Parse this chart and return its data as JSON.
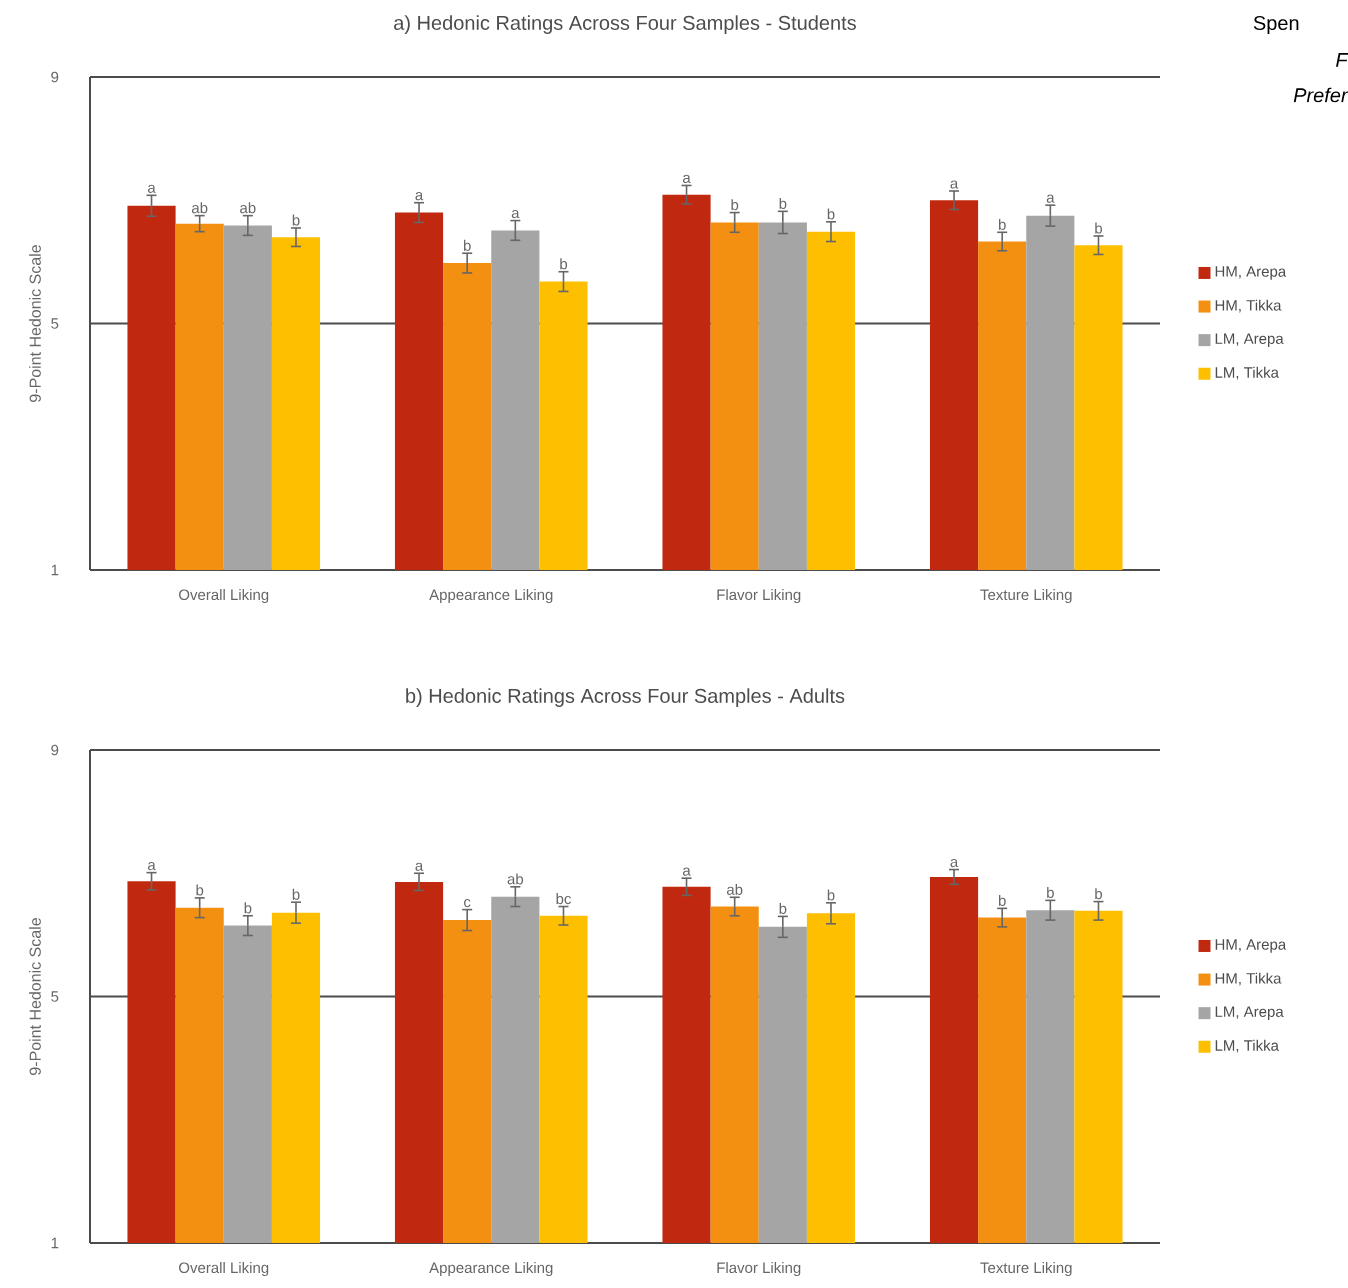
{
  "chart_data": [
    {
      "type": "bar",
      "title": "a) Hedonic Ratings Across Four Samples - Students",
      "ylabel": "9-Point Hedonic Scale",
      "categories": [
        "Overall Liking",
        "Appearance Liking",
        "Flavor Liking",
        "Texture Liking"
      ],
      "ylim": [
        1,
        9
      ],
      "yticks": [
        1,
        5,
        9
      ],
      "grid": "y",
      "legend": "right",
      "annotations": [
        "Spen",
        "F",
        "Prefer"
      ],
      "series": [
        {
          "name": "HM, Arepa",
          "color": "#c0290f",
          "values": [
            6.91,
            6.8,
            7.09,
            7.0
          ],
          "errors": [
            0.17,
            0.16,
            0.15,
            0.15
          ],
          "value_labels": [
            "a",
            "a",
            "a",
            "a"
          ]
        },
        {
          "name": "HM, Tikka",
          "color": "#f39012",
          "values": [
            6.62,
            5.98,
            6.64,
            6.33
          ],
          "errors": [
            0.13,
            0.16,
            0.16,
            0.15
          ],
          "value_labels": [
            "ab",
            "b",
            "b",
            "b"
          ]
        },
        {
          "name": "LM, Arepa",
          "color": "#a5a5a5",
          "values": [
            6.59,
            6.51,
            6.64,
            6.75
          ],
          "errors": [
            0.16,
            0.16,
            0.18,
            0.17
          ],
          "value_labels": [
            "ab",
            "a",
            "b",
            "a"
          ]
        },
        {
          "name": "LM, Tikka",
          "color": "#fdbf00",
          "values": [
            6.4,
            5.68,
            6.49,
            6.27
          ],
          "errors": [
            0.15,
            0.16,
            0.16,
            0.15
          ],
          "value_labels": [
            "b",
            "b",
            "b",
            "b"
          ]
        }
      ]
    },
    {
      "type": "bar",
      "title": "b) Hedonic Ratings Across Four Samples - Adults",
      "ylabel": "9-Point Hedonic Scale",
      "categories": [
        "Overall Liking",
        "Appearance Liking",
        "Flavor Liking",
        "Texture Liking"
      ],
      "ylim": [
        1,
        9
      ],
      "yticks": [
        1,
        5,
        9
      ],
      "grid": "y",
      "legend": "right",
      "series": [
        {
          "name": "HM, Arepa",
          "color": "#c0290f",
          "values": [
            6.87,
            6.86,
            6.78,
            6.94
          ],
          "errors": [
            0.14,
            0.14,
            0.14,
            0.12
          ],
          "value_labels": [
            "a",
            "a",
            "a",
            "a"
          ]
        },
        {
          "name": "HM, Tikka",
          "color": "#f39012",
          "values": [
            6.44,
            6.24,
            6.46,
            6.28
          ],
          "errors": [
            0.16,
            0.17,
            0.15,
            0.15
          ],
          "value_labels": [
            "b",
            "c",
            "ab",
            "b"
          ]
        },
        {
          "name": "LM, Arepa",
          "color": "#a5a5a5",
          "values": [
            6.15,
            6.62,
            6.13,
            6.4
          ],
          "errors": [
            0.16,
            0.16,
            0.17,
            0.16
          ],
          "value_labels": [
            "b",
            "ab",
            "b",
            "b"
          ]
        },
        {
          "name": "LM, Tikka",
          "color": "#fdbf00",
          "values": [
            6.36,
            6.31,
            6.35,
            6.39
          ],
          "errors": [
            0.17,
            0.15,
            0.17,
            0.15
          ],
          "value_labels": [
            "b",
            "bc",
            "b",
            "b"
          ]
        }
      ]
    }
  ]
}
